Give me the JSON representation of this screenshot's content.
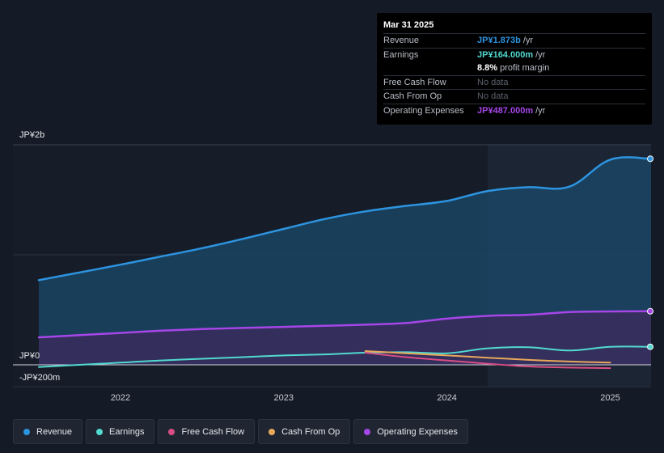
{
  "chart_data": {
    "type": "area",
    "y_axis": {
      "top_label": "JP¥2b",
      "zero_label": "JP¥0",
      "bottom_label": "-JP¥200m",
      "ylim": [
        -200,
        2000
      ],
      "unit": "JP¥ millions"
    },
    "x_axis": {
      "ticks": [
        "2022",
        "2023",
        "2024",
        "2025"
      ],
      "xlim": [
        2021.5,
        2025.25
      ]
    },
    "highlight_start": 2024.25,
    "series": [
      {
        "name": "Revenue",
        "color": "#2d94e0",
        "fill": "#1b4a6b",
        "points": [
          [
            2021.5,
            770
          ],
          [
            2021.75,
            840
          ],
          [
            2022.0,
            910
          ],
          [
            2022.25,
            985
          ],
          [
            2022.5,
            1060
          ],
          [
            2022.75,
            1145
          ],
          [
            2023.0,
            1235
          ],
          [
            2023.25,
            1325
          ],
          [
            2023.5,
            1395
          ],
          [
            2023.75,
            1445
          ],
          [
            2024.0,
            1490
          ],
          [
            2024.25,
            1580
          ],
          [
            2024.5,
            1615
          ],
          [
            2024.75,
            1620
          ],
          [
            2025.0,
            1865
          ],
          [
            2025.25,
            1873
          ]
        ]
      },
      {
        "name": "Operating Expenses",
        "color": "#a646e8",
        "fill": "#3d2a5e",
        "points": [
          [
            2021.5,
            250
          ],
          [
            2021.75,
            270
          ],
          [
            2022.0,
            290
          ],
          [
            2022.25,
            310
          ],
          [
            2022.5,
            325
          ],
          [
            2022.75,
            335
          ],
          [
            2023.0,
            345
          ],
          [
            2023.25,
            355
          ],
          [
            2023.5,
            365
          ],
          [
            2023.75,
            380
          ],
          [
            2024.0,
            420
          ],
          [
            2024.25,
            445
          ],
          [
            2024.5,
            455
          ],
          [
            2024.75,
            480
          ],
          [
            2025.0,
            485
          ],
          [
            2025.25,
            487
          ]
        ]
      },
      {
        "name": "Earnings",
        "color": "#52d9d0",
        "points": [
          [
            2021.5,
            -20
          ],
          [
            2021.75,
            0
          ],
          [
            2022.0,
            20
          ],
          [
            2022.25,
            40
          ],
          [
            2022.5,
            55
          ],
          [
            2022.75,
            70
          ],
          [
            2023.0,
            85
          ],
          [
            2023.25,
            95
          ],
          [
            2023.5,
            110
          ],
          [
            2023.75,
            115
          ],
          [
            2024.0,
            105
          ],
          [
            2024.25,
            150
          ],
          [
            2024.5,
            160
          ],
          [
            2024.75,
            130
          ],
          [
            2025.0,
            164
          ],
          [
            2025.25,
            164
          ]
        ]
      },
      {
        "name": "Free Cash Flow",
        "color": "#d94d84",
        "points": [
          [
            2023.5,
            110
          ],
          [
            2023.75,
            70
          ],
          [
            2024.0,
            40
          ],
          [
            2024.25,
            10
          ],
          [
            2024.5,
            -15
          ],
          [
            2024.75,
            -25
          ],
          [
            2025.0,
            -30
          ]
        ]
      },
      {
        "name": "Cash From Op",
        "color": "#e8a85a",
        "points": [
          [
            2023.5,
            125
          ],
          [
            2023.75,
            105
          ],
          [
            2024.0,
            85
          ],
          [
            2024.25,
            65
          ],
          [
            2024.5,
            45
          ],
          [
            2024.75,
            30
          ],
          [
            2025.0,
            20
          ]
        ]
      }
    ],
    "end_markers": [
      "Revenue",
      "Operating Expenses",
      "Earnings"
    ]
  },
  "tooltip": {
    "date": "Mar 31 2025",
    "rows": [
      {
        "label": "Revenue",
        "value": "JP¥1.873b",
        "unit": "/yr",
        "color": "#2d94e0"
      },
      {
        "label": "Earnings",
        "value": "JP¥164.000m",
        "unit": "/yr",
        "color": "#52d9d0"
      },
      {
        "label": "",
        "value": "8.8%",
        "unit": "profit margin",
        "color": "#ffffff"
      },
      {
        "label": "Free Cash Flow",
        "value": "No data",
        "unit": "",
        "color": "nodata"
      },
      {
        "label": "Cash From Op",
        "value": "No data",
        "unit": "",
        "color": "nodata"
      },
      {
        "label": "Operating Expenses",
        "value": "JP¥487.000m",
        "unit": "/yr",
        "color": "#a646e8"
      }
    ]
  },
  "legend": [
    {
      "label": "Revenue",
      "color": "#2d94e0"
    },
    {
      "label": "Earnings",
      "color": "#52d9d0"
    },
    {
      "label": "Free Cash Flow",
      "color": "#d94d84"
    },
    {
      "label": "Cash From Op",
      "color": "#e8a85a"
    },
    {
      "label": "Operating Expenses",
      "color": "#a646e8"
    }
  ]
}
